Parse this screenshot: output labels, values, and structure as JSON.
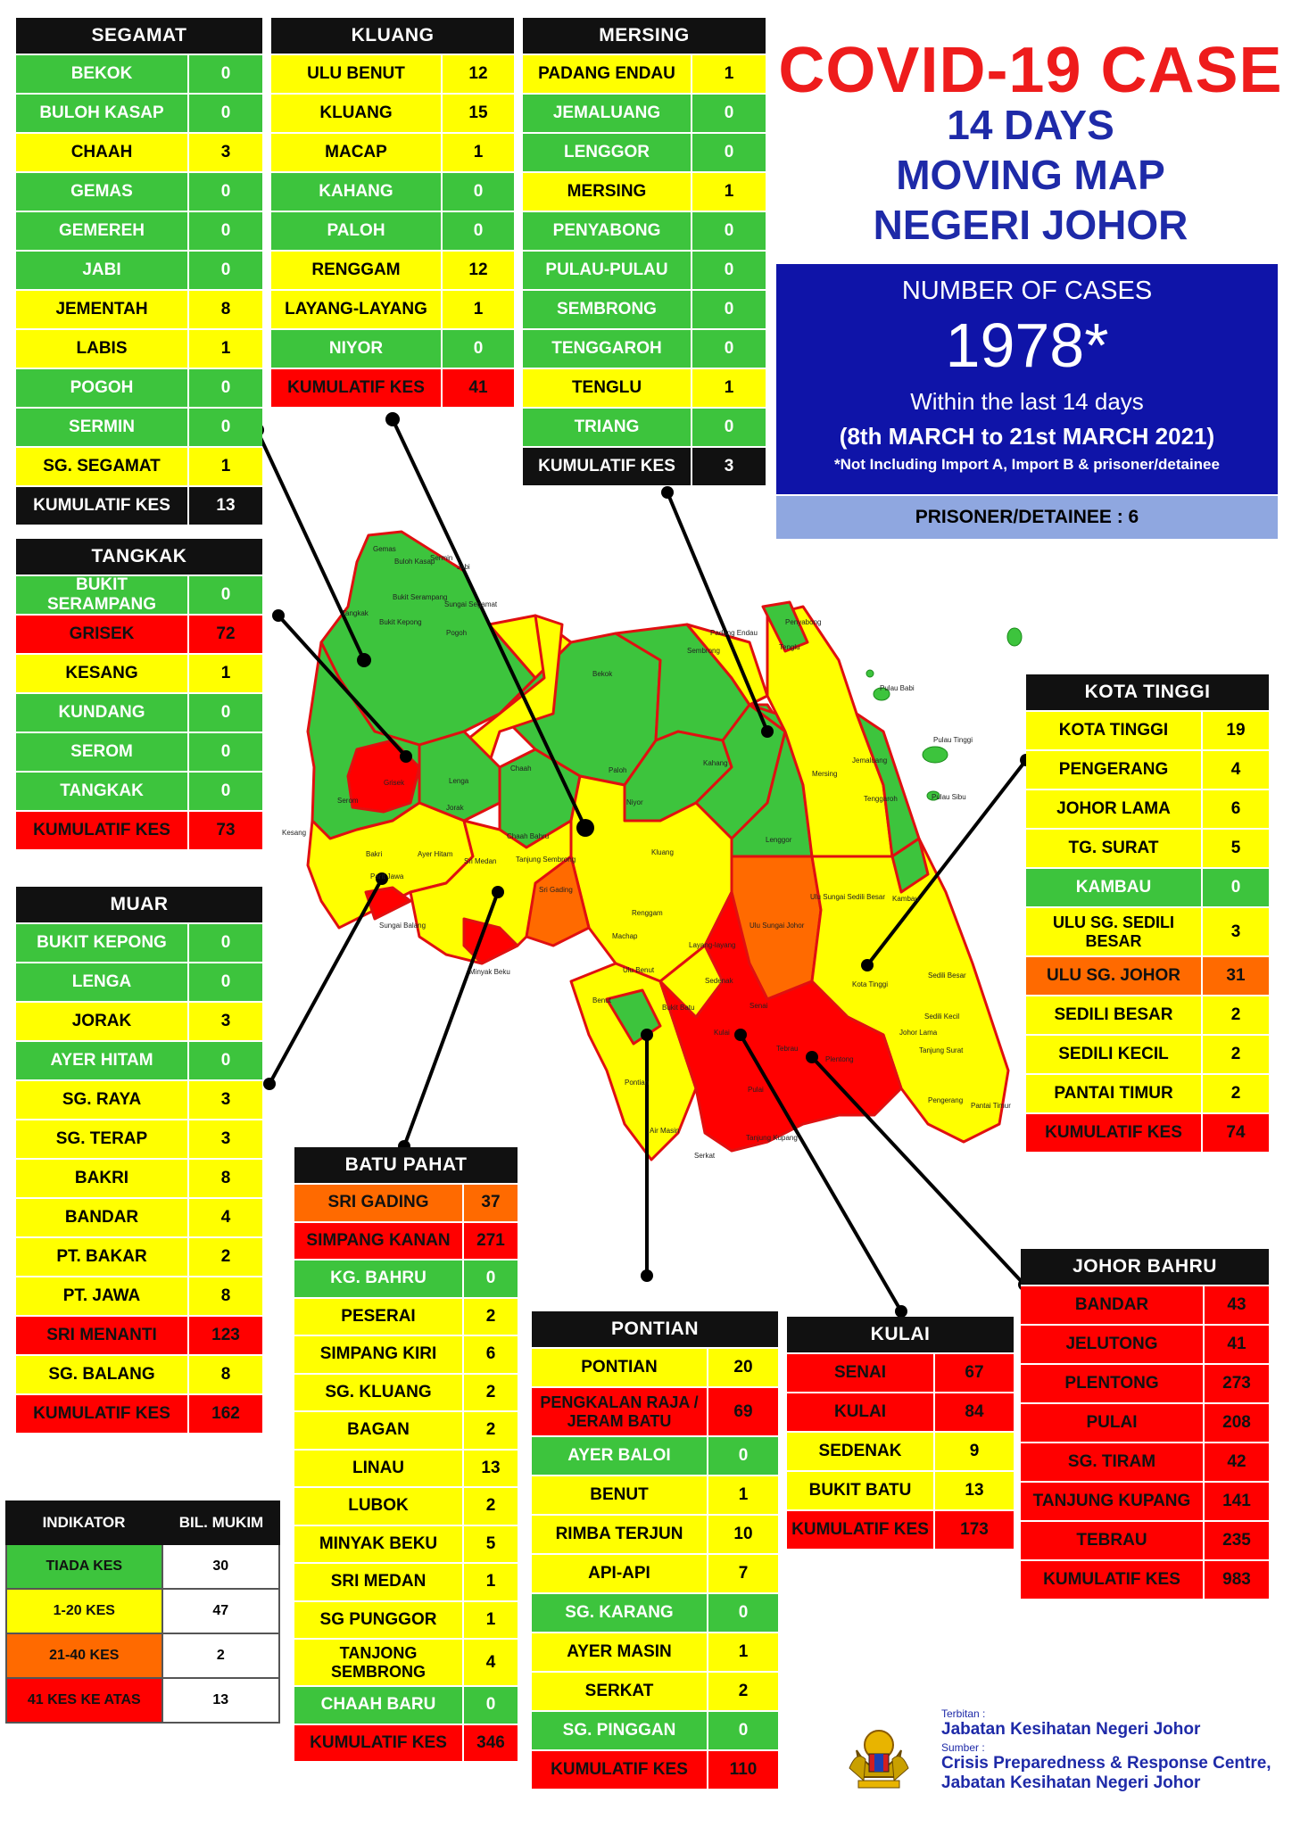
{
  "header": {
    "title_line1": "COVID-19 CASE",
    "title_line2": "14 DAYS",
    "title_line3": "MOVING MAP",
    "title_line4": "NEGERI JOHOR"
  },
  "summary": {
    "label": "NUMBER OF CASES",
    "total": "1978*",
    "period_line1": "Within the last 14 days",
    "period_line2": "(8th MARCH to 21st MARCH 2021)",
    "note": "*Not Including Import A, Import B & prisoner/detainee",
    "prisoner": "PRISONER/DETAINEE : 6"
  },
  "colors": {
    "green": "#3dc43d",
    "yellow": "#ffff00",
    "orange": "#ff6a00",
    "red": "#ff0000",
    "navy": "#0f14a8",
    "title_red": "#ee1c1c",
    "title_blue": "#1e2aa8"
  },
  "districts": {
    "segamat": {
      "name": "SEGAMAT",
      "rows": [
        {
          "name": "BEKOK",
          "value": "0",
          "level": "g"
        },
        {
          "name": "BULOH KASAP",
          "value": "0",
          "level": "g"
        },
        {
          "name": "CHAAH",
          "value": "3",
          "level": "y"
        },
        {
          "name": "GEMAS",
          "value": "0",
          "level": "g"
        },
        {
          "name": "GEMEREH",
          "value": "0",
          "level": "g"
        },
        {
          "name": "JABI",
          "value": "0",
          "level": "g"
        },
        {
          "name": "JEMENTAH",
          "value": "8",
          "level": "y"
        },
        {
          "name": "LABIS",
          "value": "1",
          "level": "y"
        },
        {
          "name": "POGOH",
          "value": "0",
          "level": "g"
        },
        {
          "name": "SERMIN",
          "value": "0",
          "level": "g"
        },
        {
          "name": "SG. SEGAMAT",
          "value": "1",
          "level": "y"
        },
        {
          "name": "KUMULATIF KES",
          "value": "13",
          "level": "k"
        }
      ]
    },
    "kluang": {
      "name": "KLUANG",
      "rows": [
        {
          "name": "ULU BENUT",
          "value": "12",
          "level": "y"
        },
        {
          "name": "KLUANG",
          "value": "15",
          "level": "y"
        },
        {
          "name": "MACAP",
          "value": "1",
          "level": "y"
        },
        {
          "name": "KAHANG",
          "value": "0",
          "level": "g"
        },
        {
          "name": "PALOH",
          "value": "0",
          "level": "g"
        },
        {
          "name": "RENGGAM",
          "value": "12",
          "level": "y"
        },
        {
          "name": "LAYANG-LAYANG",
          "value": "1",
          "level": "y"
        },
        {
          "name": "NIYOR",
          "value": "0",
          "level": "g"
        },
        {
          "name": "KUMULATIF KES",
          "value": "41",
          "level": "r"
        }
      ]
    },
    "mersing": {
      "name": "MERSING",
      "rows": [
        {
          "name": "PADANG ENDAU",
          "value": "1",
          "level": "y"
        },
        {
          "name": "JEMALUANG",
          "value": "0",
          "level": "g"
        },
        {
          "name": "LENGGOR",
          "value": "0",
          "level": "g"
        },
        {
          "name": "MERSING",
          "value": "1",
          "level": "y"
        },
        {
          "name": "PENYABONG",
          "value": "0",
          "level": "g"
        },
        {
          "name": "PULAU-PULAU",
          "value": "0",
          "level": "g"
        },
        {
          "name": "SEMBRONG",
          "value": "0",
          "level": "g"
        },
        {
          "name": "TENGGAROH",
          "value": "0",
          "level": "g"
        },
        {
          "name": "TENGLU",
          "value": "1",
          "level": "y"
        },
        {
          "name": "TRIANG",
          "value": "0",
          "level": "g"
        },
        {
          "name": "KUMULATIF KES",
          "value": "3",
          "level": "k"
        }
      ]
    },
    "tangkak": {
      "name": "TANGKAK",
      "rows": [
        {
          "name": "BUKIT SERAMPANG",
          "value": "0",
          "level": "g"
        },
        {
          "name": "GRISEK",
          "value": "72",
          "level": "r"
        },
        {
          "name": "KESANG",
          "value": "1",
          "level": "y"
        },
        {
          "name": "KUNDANG",
          "value": "0",
          "level": "g"
        },
        {
          "name": "SEROM",
          "value": "0",
          "level": "g"
        },
        {
          "name": "TANGKAK",
          "value": "0",
          "level": "g"
        },
        {
          "name": "KUMULATIF KES",
          "value": "73",
          "level": "r"
        }
      ]
    },
    "muar": {
      "name": "MUAR",
      "rows": [
        {
          "name": "BUKIT KEPONG",
          "value": "0",
          "level": "g"
        },
        {
          "name": "LENGA",
          "value": "0",
          "level": "g"
        },
        {
          "name": "JORAK",
          "value": "3",
          "level": "y"
        },
        {
          "name": "AYER HITAM",
          "value": "0",
          "level": "g"
        },
        {
          "name": "SG. RAYA",
          "value": "3",
          "level": "y"
        },
        {
          "name": "SG. TERAP",
          "value": "3",
          "level": "y"
        },
        {
          "name": "BAKRI",
          "value": "8",
          "level": "y"
        },
        {
          "name": "BANDAR",
          "value": "4",
          "level": "y"
        },
        {
          "name": "PT. BAKAR",
          "value": "2",
          "level": "y"
        },
        {
          "name": "PT. JAWA",
          "value": "8",
          "level": "y"
        },
        {
          "name": "SRI MENANTI",
          "value": "123",
          "level": "r"
        },
        {
          "name": "SG. BALANG",
          "value": "8",
          "level": "y"
        },
        {
          "name": "KUMULATIF KES",
          "value": "162",
          "level": "r"
        }
      ]
    },
    "kota_tinggi": {
      "name": "KOTA TINGGI",
      "rows": [
        {
          "name": "KOTA TINGGI",
          "value": "19",
          "level": "y"
        },
        {
          "name": "PENGERANG",
          "value": "4",
          "level": "y"
        },
        {
          "name": "JOHOR LAMA",
          "value": "6",
          "level": "y"
        },
        {
          "name": "TG. SURAT",
          "value": "5",
          "level": "y"
        },
        {
          "name": "KAMBAU",
          "value": "0",
          "level": "g"
        },
        {
          "name": "ULU SG. SEDILI BESAR",
          "value": "3",
          "level": "y"
        },
        {
          "name": "ULU  SG. JOHOR",
          "value": "31",
          "level": "o"
        },
        {
          "name": "SEDILI BESAR",
          "value": "2",
          "level": "y"
        },
        {
          "name": "SEDILI KECIL",
          "value": "2",
          "level": "y"
        },
        {
          "name": "PANTAI TIMUR",
          "value": "2",
          "level": "y"
        },
        {
          "name": "KUMULATIF KES",
          "value": "74",
          "level": "r"
        }
      ]
    },
    "batu_pahat": {
      "name": "BATU PAHAT",
      "rows": [
        {
          "name": "SRI GADING",
          "value": "37",
          "level": "o"
        },
        {
          "name": "SIMPANG KANAN",
          "value": "271",
          "level": "r"
        },
        {
          "name": "KG. BAHRU",
          "value": "0",
          "level": "g"
        },
        {
          "name": "PESERAI",
          "value": "2",
          "level": "y"
        },
        {
          "name": "SIMPANG KIRI",
          "value": "6",
          "level": "y"
        },
        {
          "name": "SG. KLUANG",
          "value": "2",
          "level": "y"
        },
        {
          "name": "BAGAN",
          "value": "2",
          "level": "y"
        },
        {
          "name": "LINAU",
          "value": "13",
          "level": "y"
        },
        {
          "name": "LUBOK",
          "value": "2",
          "level": "y"
        },
        {
          "name": "MINYAK BEKU",
          "value": "5",
          "level": "y"
        },
        {
          "name": "SRI MEDAN",
          "value": "1",
          "level": "y"
        },
        {
          "name": "SG PUNGGOR",
          "value": "1",
          "level": "y"
        },
        {
          "name": "TANJONG SEMBRONG",
          "value": "4",
          "level": "y"
        },
        {
          "name": "CHAAH BARU",
          "value": "0",
          "level": "g"
        },
        {
          "name": "KUMULATIF KES",
          "value": "346",
          "level": "r"
        }
      ]
    },
    "pontian": {
      "name": "PONTIAN",
      "rows": [
        {
          "name": "PONTIAN",
          "value": "20",
          "level": "y"
        },
        {
          "name": "PENGKALAN RAJA / JERAM BATU",
          "value": "69",
          "level": "r"
        },
        {
          "name": "AYER BALOI",
          "value": "0",
          "level": "g"
        },
        {
          "name": "BENUT",
          "value": "1",
          "level": "y"
        },
        {
          "name": "RIMBA TERJUN",
          "value": "10",
          "level": "y"
        },
        {
          "name": "API-API",
          "value": "7",
          "level": "y"
        },
        {
          "name": "SG. KARANG",
          "value": "0",
          "level": "g"
        },
        {
          "name": "AYER MASIN",
          "value": "1",
          "level": "y"
        },
        {
          "name": "SERKAT",
          "value": "2",
          "level": "y"
        },
        {
          "name": "SG. PINGGAN",
          "value": "0",
          "level": "g"
        },
        {
          "name": "KUMULATIF KES",
          "value": "110",
          "level": "r"
        }
      ]
    },
    "kulai": {
      "name": "KULAI",
      "rows": [
        {
          "name": "SENAI",
          "value": "67",
          "level": "r"
        },
        {
          "name": "KULAI",
          "value": "84",
          "level": "r"
        },
        {
          "name": "SEDENAK",
          "value": "9",
          "level": "y"
        },
        {
          "name": "BUKIT BATU",
          "value": "13",
          "level": "y"
        },
        {
          "name": "KUMULATIF KES",
          "value": "173",
          "level": "r"
        }
      ]
    },
    "johor_bahru": {
      "name": "JOHOR BAHRU",
      "rows": [
        {
          "name": "BANDAR",
          "value": "43",
          "level": "r"
        },
        {
          "name": "JELUTONG",
          "value": "41",
          "level": "r"
        },
        {
          "name": "PLENTONG",
          "value": "273",
          "level": "r"
        },
        {
          "name": "PULAI",
          "value": "208",
          "level": "r"
        },
        {
          "name": "SG. TIRAM",
          "value": "42",
          "level": "r"
        },
        {
          "name": "TANJUNG KUPANG",
          "value": "141",
          "level": "r"
        },
        {
          "name": "TEBRAU",
          "value": "235",
          "level": "r"
        },
        {
          "name": "KUMULATIF KES",
          "value": "983",
          "level": "r"
        }
      ]
    }
  },
  "legend": {
    "head_indicator": "INDIKATOR",
    "head_count": "BIL. MUKIM",
    "rows": [
      {
        "label": "TIADA KES",
        "value": "30",
        "level": "g"
      },
      {
        "label": "1-20 KES",
        "value": "47",
        "level": "y"
      },
      {
        "label": "21-40 KES",
        "value": "2",
        "level": "o"
      },
      {
        "label": "41 KES KE ATAS",
        "value": "13",
        "level": "r"
      }
    ]
  },
  "footer": {
    "terbitan_label": "Terbitan :",
    "terbitan": "Jabatan Kesihatan Negeri Johor",
    "sumber_label": "Sumber :",
    "sumber_line1": "Crisis Preparedness & Response Centre,",
    "sumber_line2": "Jabatan Kesihatan Negeri Johor"
  },
  "map_labels": [
    "Gemas",
    "Buloh Kasap",
    "Sermin",
    "Jabi",
    "Bukit Serampang",
    "Sungai Segamat",
    "Pogoh",
    "Tangkak",
    "Bukit Kepong",
    "Bekok",
    "Sembrong",
    "Padang Endau",
    "Tenglu",
    "Penyabong",
    "Pulau Babi",
    "Pulau Tinggi",
    "Pulau Sibu",
    "Chaah",
    "Paloh",
    "Kahang",
    "Mersing",
    "Lenga",
    "Niyor",
    "Grisek",
    "Jorak",
    "Serom",
    "Chaah Bahru",
    "Kluang",
    "Lenggor",
    "Tenggaroh",
    "Jemaluang",
    "Kesang",
    "Sri Medan",
    "Tanjung Sembrong",
    "Ayer Hitam",
    "Bakri",
    "Parit Jawa",
    "Renggam",
    "Ulu Sungai Sedili Besar",
    "Ulu Sungai Johor",
    "Kambau",
    "Sri Gading",
    "Machap",
    "Layang-layang",
    "Sedili Besar",
    "Sungai Balang",
    "Minyak Beku",
    "Ulu Benut",
    "Kota Tinggi",
    "Sedili Kecil",
    "Sedenak",
    "Benut",
    "Bukit Batu",
    "Kulai",
    "Senai",
    "Johor Lama",
    "Tanjung Surat",
    "Pontian",
    "Tebrau",
    "Plentong",
    "Pulai",
    "Pengerang",
    "Pantai Timur",
    "Serkat",
    "Tanjung Kupang",
    "Air Masin"
  ]
}
